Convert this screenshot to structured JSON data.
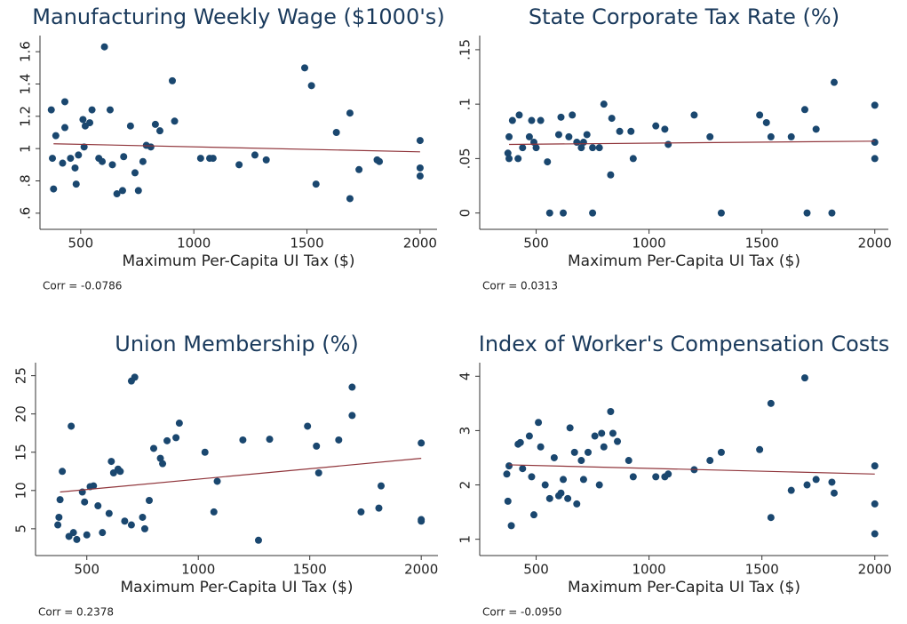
{
  "chart_data": [
    {
      "type": "scatter",
      "title": "Manufacturing Weekly Wage ($1000's)",
      "x_label": "Maximum Per-Capita UI Tax ($)",
      "annotation": "Corr = -0.0786",
      "color": "#1a476f",
      "fit_color": "#90353b",
      "x": [
        370,
        375,
        380,
        390,
        420,
        430,
        430,
        455,
        475,
        480,
        490,
        510,
        515,
        520,
        540,
        550,
        580,
        595,
        605,
        630,
        640,
        660,
        685,
        690,
        720,
        740,
        755,
        775,
        790,
        810,
        830,
        850,
        905,
        915,
        1030,
        1070,
        1085,
        1200,
        1270,
        1320,
        1490,
        1520,
        1540,
        1630,
        1690,
        1690,
        1730,
        1810,
        1820,
        2000,
        2000,
        2000
      ],
      "y": [
        1.24,
        0.94,
        0.75,
        1.08,
        0.91,
        1.29,
        1.13,
        0.94,
        0.88,
        0.78,
        0.96,
        1.18,
        1.01,
        1.14,
        1.16,
        1.24,
        0.94,
        0.92,
        1.63,
        1.24,
        0.9,
        0.72,
        0.74,
        0.95,
        1.14,
        0.85,
        0.74,
        0.92,
        1.02,
        1.01,
        1.15,
        1.11,
        1.42,
        1.17,
        0.94,
        0.94,
        0.94,
        0.9,
        0.96,
        0.93,
        1.5,
        1.39,
        0.78,
        1.1,
        0.69,
        1.22,
        0.87,
        0.93,
        0.92,
        1.05,
        0.88,
        0.83
      ],
      "fit_x": [
        380,
        2000
      ],
      "fit_y": [
        1.03,
        0.98
      ],
      "xlim": [
        320,
        2075
      ],
      "ylim": [
        0.5,
        1.7
      ],
      "xticks": [
        500,
        1000,
        1500,
        2000
      ],
      "yticks": [
        {
          "value": 0.6,
          "label": ".6"
        },
        {
          "value": 0.8,
          "label": ".8"
        },
        1,
        {
          "value": 1.2,
          "label": "1.2"
        },
        {
          "value": 1.4,
          "label": "1.4"
        },
        {
          "value": 1.6,
          "label": "1.6"
        }
      ]
    },
    {
      "type": "scatter",
      "title": "State Corporate Tax Rate (%)",
      "x_label": "Maximum Per-Capita UI Tax ($)",
      "annotation": "Corr = 0.0313",
      "color": "#1a476f",
      "fit_color": "#90353b",
      "x": [
        375,
        380,
        380,
        395,
        420,
        425,
        440,
        470,
        480,
        490,
        500,
        520,
        550,
        560,
        600,
        610,
        620,
        645,
        660,
        680,
        700,
        710,
        725,
        750,
        750,
        780,
        800,
        830,
        835,
        870,
        920,
        930,
        1030,
        1070,
        1085,
        1200,
        1270,
        1320,
        1490,
        1520,
        1540,
        1630,
        1690,
        1700,
        1740,
        1810,
        1820,
        2000,
        2000,
        2000
      ],
      "y": [
        0.055,
        0.07,
        0.05,
        0.085,
        0.05,
        0.09,
        0.06,
        0.07,
        0.085,
        0.065,
        0.06,
        0.085,
        0.047,
        0,
        0.072,
        0.088,
        0,
        0.07,
        0.09,
        0.065,
        0.06,
        0.065,
        0.072,
        0.06,
        0,
        0.06,
        0.1,
        0.035,
        0.087,
        0.075,
        0.075,
        0.05,
        0.08,
        0.077,
        0.063,
        0.09,
        0.07,
        0,
        0.09,
        0.083,
        0.07,
        0.07,
        0.095,
        0,
        0.077,
        0,
        0.12,
        0.099,
        0.065,
        0.05
      ],
      "fit_x": [
        380,
        2000
      ],
      "fit_y": [
        0.063,
        0.066
      ],
      "xlim": [
        250,
        2060
      ],
      "ylim": [
        -0.015,
        0.163
      ],
      "xticks": [
        500,
        1000,
        1500,
        2000
      ],
      "yticks": [
        0,
        {
          "value": 0.05,
          "label": ".05"
        },
        {
          "value": 0.1,
          "label": ".1"
        },
        {
          "value": 0.15,
          "label": ".15"
        }
      ]
    },
    {
      "type": "scatter",
      "title": "Union Membership (%)",
      "x_label": "Maximum Per-Capita UI Tax ($)",
      "annotation": "Corr = 0.2378",
      "color": "#1a476f",
      "fit_color": "#90353b",
      "x": [
        370,
        375,
        380,
        390,
        420,
        430,
        440,
        455,
        480,
        490,
        500,
        515,
        530,
        550,
        570,
        600,
        610,
        620,
        640,
        650,
        670,
        700,
        700,
        715,
        750,
        760,
        780,
        800,
        830,
        840,
        860,
        900,
        915,
        1030,
        1070,
        1085,
        1200,
        1270,
        1320,
        1490,
        1530,
        1540,
        1630,
        1690,
        1690,
        1730,
        1810,
        1820,
        2000,
        2000,
        2000
      ],
      "y": [
        5.5,
        6.5,
        8.8,
        12.5,
        4.0,
        18.4,
        4.5,
        3.6,
        9.8,
        8.5,
        4.2,
        10.5,
        10.6,
        8.0,
        4.5,
        7.0,
        13.8,
        12.3,
        12.8,
        12.5,
        6.0,
        5.5,
        24.3,
        24.8,
        6.5,
        5.0,
        8.7,
        15.5,
        14.2,
        13.5,
        16.5,
        16.9,
        18.8,
        15.0,
        7.2,
        11.2,
        16.6,
        3.5,
        16.7,
        18.4,
        15.8,
        12.3,
        16.6,
        23.5,
        19.8,
        7.2,
        7.7,
        10.6,
        16.2,
        6.2,
        6.0
      ],
      "fit_x": [
        380,
        2000
      ],
      "fit_y": [
        9.8,
        14.2
      ],
      "xlim": [
        270,
        2075
      ],
      "ylim": [
        1.5,
        26.7
      ],
      "xticks": [
        500,
        1000,
        1500,
        2000
      ],
      "yticks": [
        5,
        10,
        15,
        20,
        25
      ]
    },
    {
      "type": "scatter",
      "title": "Index of Worker's Compensation Costs",
      "x_label": "Maximum Per-Capita UI Tax ($)",
      "annotation": "Corr = -0.0950",
      "color": "#1a476f",
      "fit_color": "#90353b",
      "x": [
        370,
        375,
        380,
        390,
        420,
        430,
        440,
        470,
        480,
        490,
        510,
        520,
        540,
        560,
        580,
        600,
        610,
        620,
        640,
        650,
        670,
        680,
        700,
        710,
        730,
        760,
        780,
        790,
        800,
        830,
        840,
        860,
        910,
        930,
        1030,
        1070,
        1085,
        1200,
        1270,
        1320,
        1490,
        1540,
        1540,
        1630,
        1690,
        1700,
        1740,
        1810,
        1820,
        2000,
        2000,
        2000
      ],
      "y": [
        2.2,
        1.7,
        2.35,
        1.25,
        2.75,
        2.78,
        2.3,
        2.9,
        2.15,
        1.45,
        3.15,
        2.7,
        2.0,
        1.75,
        2.5,
        1.8,
        1.85,
        2.1,
        1.75,
        3.05,
        2.6,
        1.65,
        2.45,
        2.1,
        2.6,
        2.9,
        2.0,
        2.95,
        2.7,
        3.35,
        2.95,
        2.8,
        2.45,
        2.15,
        2.15,
        2.15,
        2.2,
        2.28,
        2.45,
        2.6,
        2.65,
        3.5,
        1.4,
        1.9,
        3.97,
        2.0,
        2.1,
        2.05,
        1.85,
        2.35,
        1.65,
        1.1
      ],
      "fit_x": [
        380,
        2000
      ],
      "fit_y": [
        2.37,
        2.2
      ],
      "xlim": [
        250,
        2060
      ],
      "ylim": [
        0.7,
        4.25
      ],
      "xticks": [
        500,
        1000,
        1500,
        2000
      ],
      "yticks": [
        1,
        2,
        3,
        4
      ]
    }
  ]
}
